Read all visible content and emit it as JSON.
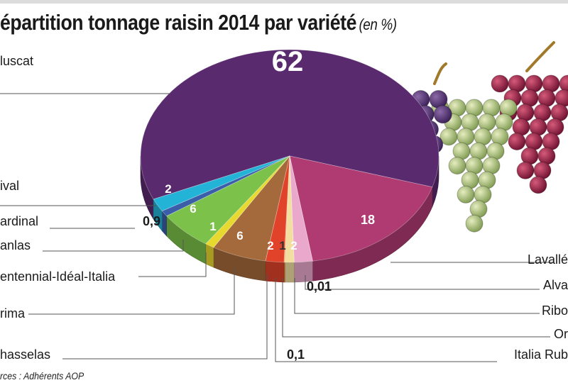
{
  "title": "épartition tonnage raisin 2014 par variété",
  "title_unit": "(en %)",
  "source": "rces : Adhérents AOP",
  "chart_data": {
    "type": "pie",
    "title": "épartition tonnage raisin 2014 par variété",
    "unit": "(en %)",
    "slices": [
      {
        "label": "luscat",
        "value": 62,
        "value_label": "62",
        "color": "#5a2a6e"
      },
      {
        "label": "Lavallé",
        "value": 18,
        "value_label": "18",
        "color": "#b03a72"
      },
      {
        "label": "Alva",
        "value": 0.01,
        "value_label": "0,01",
        "color": "#8a2f5a"
      },
      {
        "label": "Ribo",
        "value": 2,
        "value_label": "2",
        "color": "#e9a8cc"
      },
      {
        "label": "Or",
        "value": 1,
        "value_label": "1",
        "color": "#f2dfa0"
      },
      {
        "label": "Italia Rub",
        "value": 0.1,
        "value_label": "0,1",
        "color": "#f08a3a"
      },
      {
        "label": "hasselas",
        "value": 2,
        "value_label": "2",
        "color": "#e0432a"
      },
      {
        "label": "rima",
        "value": 6,
        "value_label": "6",
        "color": "#a56a3c"
      },
      {
        "label": "entennial-Idéal-Italia",
        "value": 1,
        "value_label": "1",
        "color": "#e8d92e"
      },
      {
        "label": "anlas",
        "value": 6,
        "value_label": "6",
        "color": "#7cc14a"
      },
      {
        "label": "ardinal",
        "value": 0.9,
        "value_label": "0,9",
        "color": "#3a5fa8"
      },
      {
        "label": "ival",
        "value": 2,
        "value_label": "2",
        "color": "#23b3d6"
      }
    ]
  }
}
